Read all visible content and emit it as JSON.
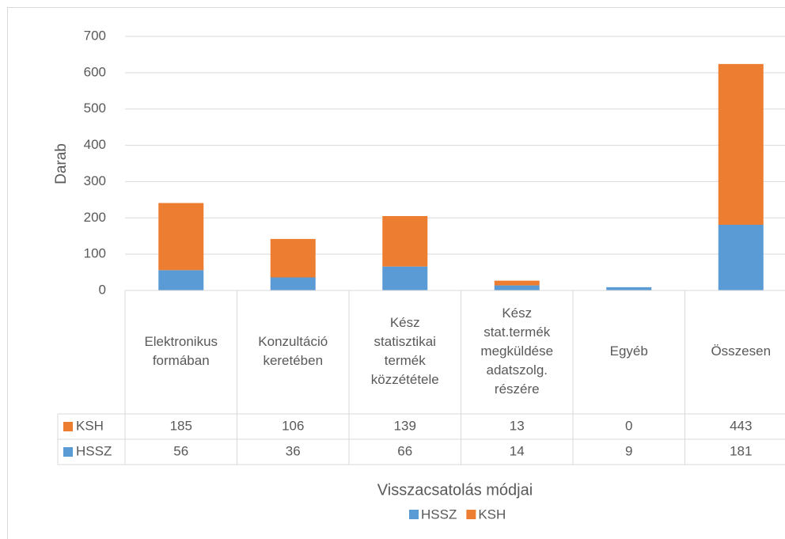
{
  "chart_data": {
    "type": "bar",
    "stacked": true,
    "y_label": "Darab",
    "x_label": "Visszacsatolás módjai",
    "categories": [
      "Elektronikus formában",
      "Konzultáció keretében",
      "Kész statisztikai termék közzététele",
      "Kész stat.termék megküldése adatszolg. részére",
      "Egyéb",
      "Összesen"
    ],
    "series": [
      {
        "name": "HSSZ",
        "color": "#5b9bd5",
        "values": [
          56,
          36,
          66,
          14,
          9,
          181
        ]
      },
      {
        "name": "KSH",
        "color": "#ed7d31",
        "values": [
          185,
          106,
          139,
          13,
          0,
          443
        ]
      }
    ],
    "ylim": [
      0,
      700
    ],
    "yticks": [
      0,
      100,
      200,
      300,
      400,
      500,
      600,
      700
    ],
    "grid": true,
    "legend": "bottom",
    "data_table": true
  }
}
